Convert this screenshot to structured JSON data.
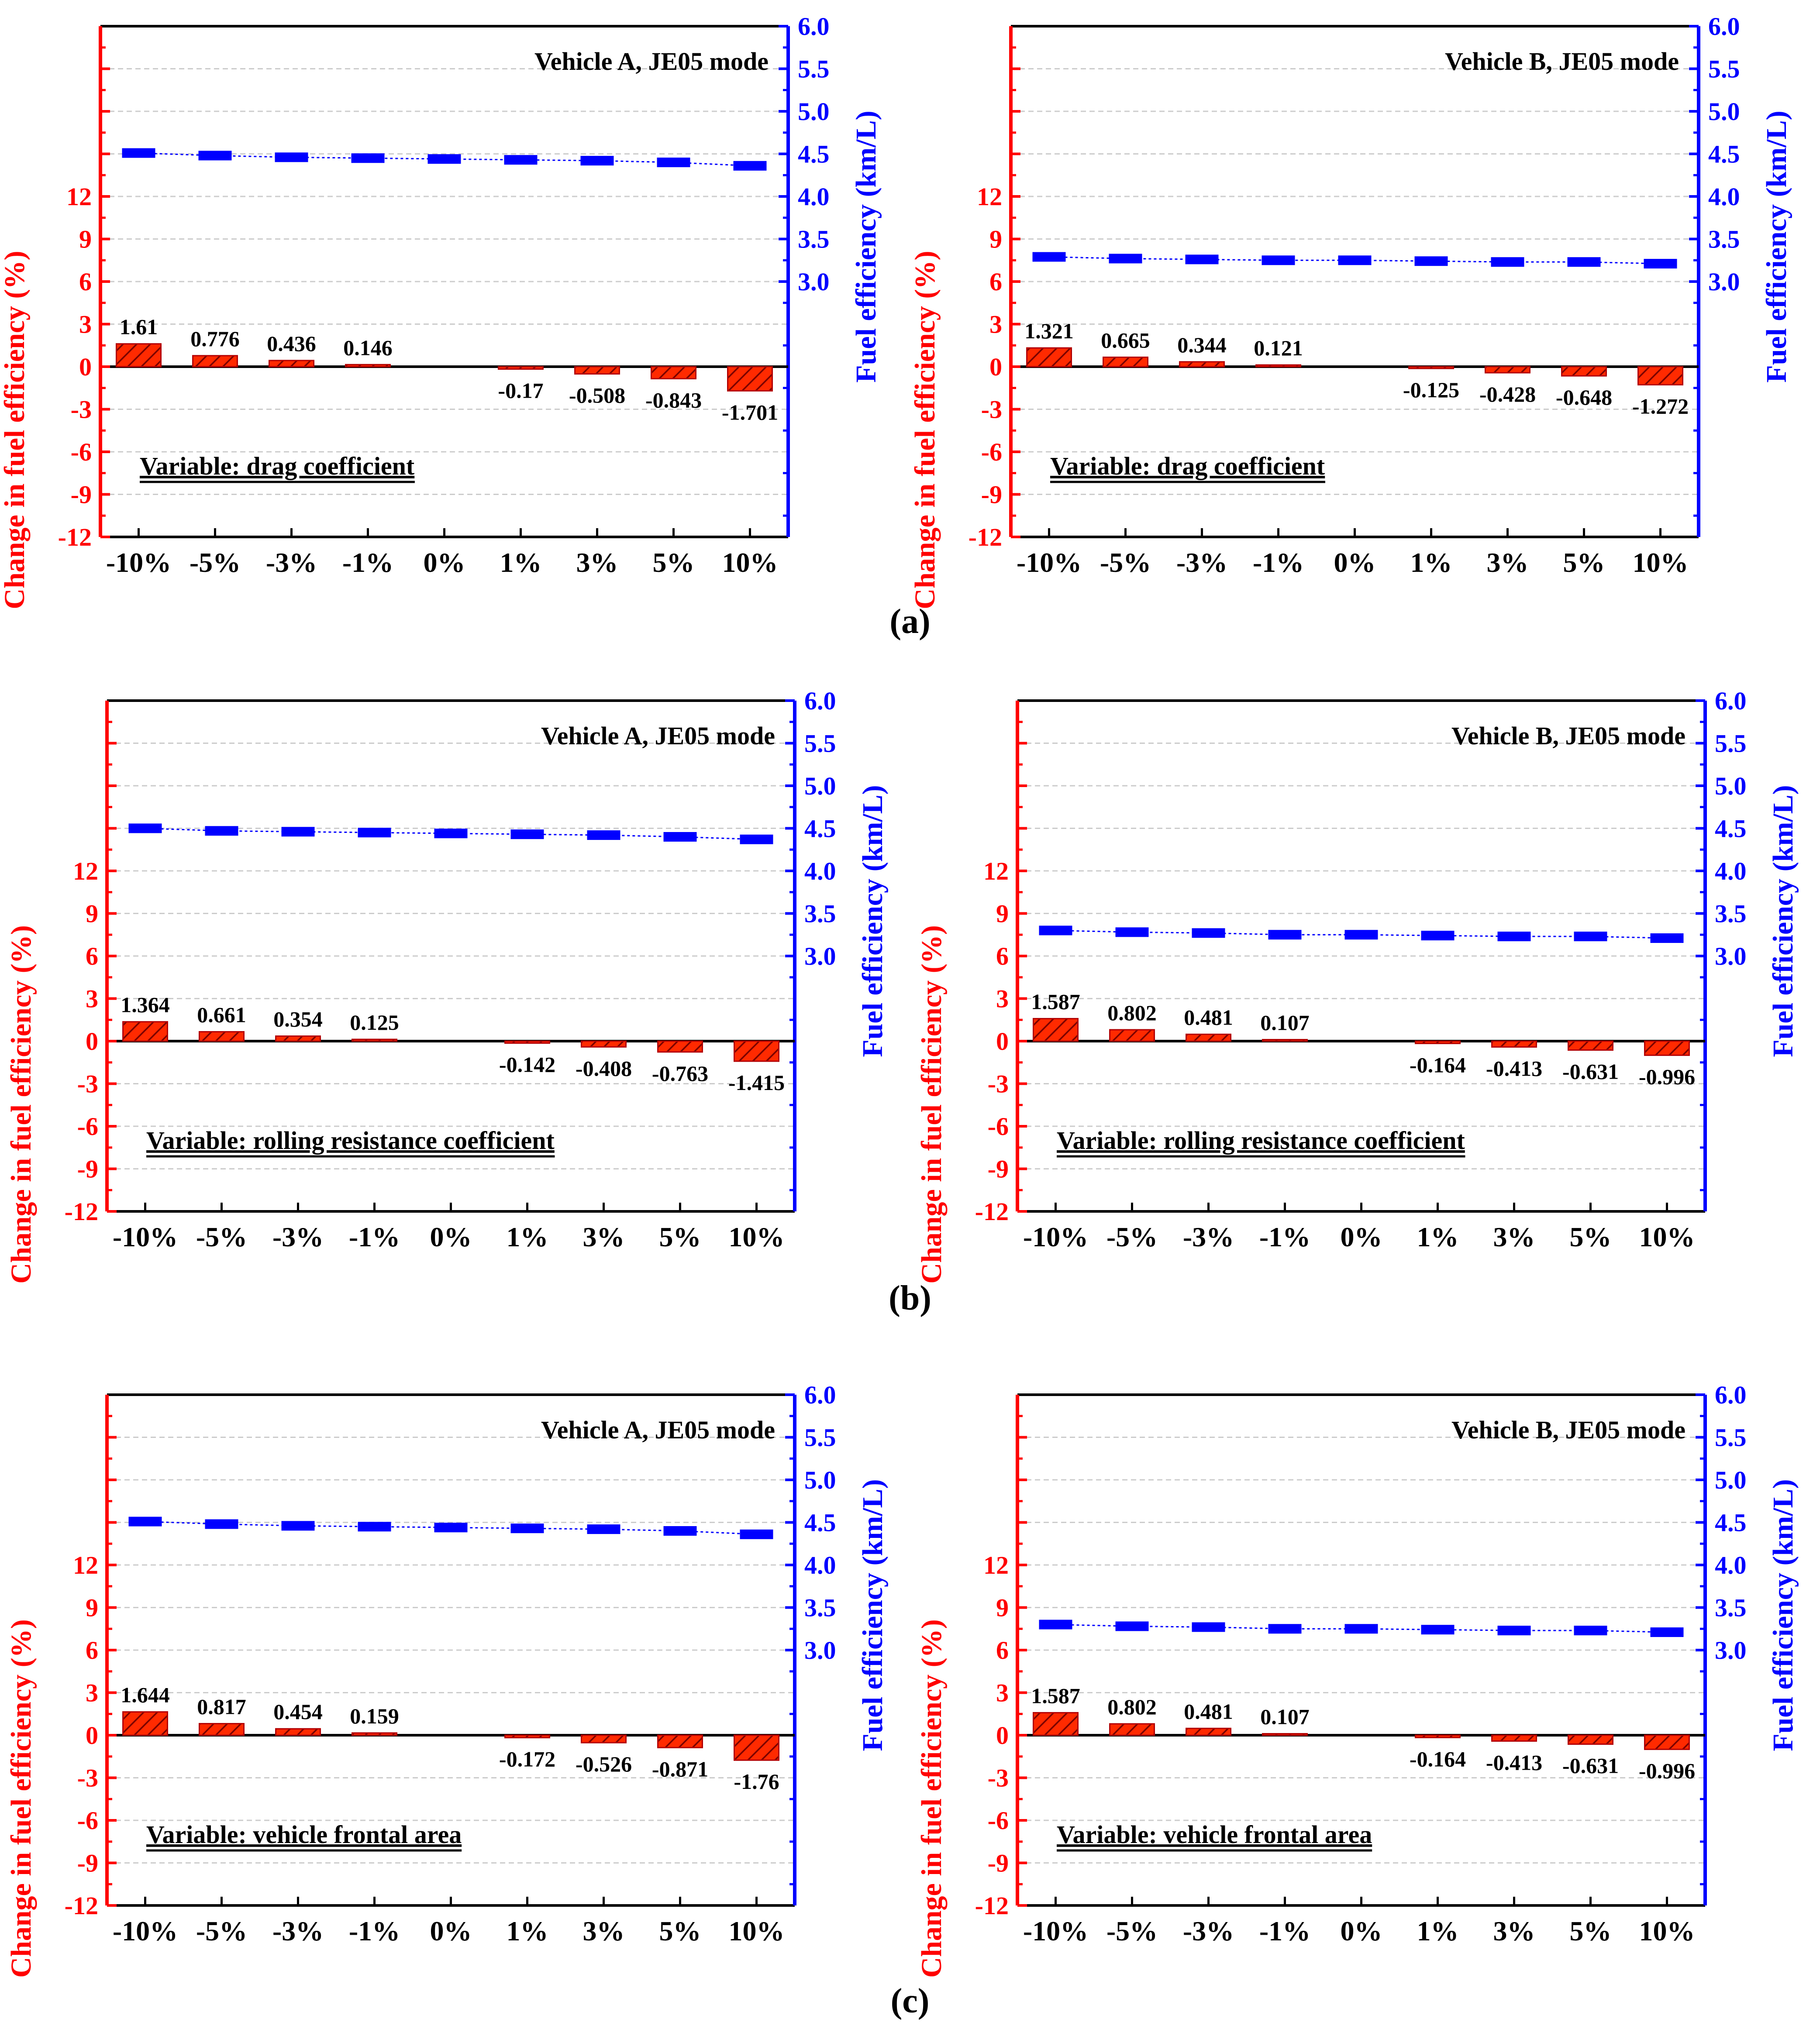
{
  "colors": {
    "left_axis": "#ff0000",
    "right_axis": "#0000ff",
    "bar_fill": "#ff2a00",
    "bar_hatch": "#7a0000",
    "fe_marker": "#0000ff",
    "grid": "#cccccc",
    "zero_line": "#000000"
  },
  "panel_labels": [
    "(a)",
    "(b)",
    "(c)"
  ],
  "chart_data": [
    {
      "type": "bar",
      "panel": "a",
      "title": "Vehicle A, JE05 mode",
      "annotation": "Variable: drag coefficient",
      "categories": [
        "-10%",
        "-5%",
        "-3%",
        "-1%",
        "0%",
        "1%",
        "3%",
        "5%",
        "10%"
      ],
      "ylabel": "Change in fuel efficiency (%)",
      "ylim": [
        -12,
        24
      ],
      "yticks": [
        "-12",
        "-9",
        "-6",
        "-3",
        "0",
        "3",
        "6",
        "9",
        "12"
      ],
      "y2label": "Fuel efficiency (km/L)",
      "y2lim": [
        0,
        6.0
      ],
      "y2ticks": [
        "3.0",
        "3.5",
        "4.0",
        "4.5",
        "5.0",
        "5.5",
        "6.0"
      ],
      "values": [
        1.61,
        0.776,
        0.436,
        0.146,
        0,
        -0.17,
        -0.508,
        -0.843,
        -1.701
      ],
      "labels": [
        "1.61",
        "0.776",
        "0.436",
        "0.146",
        "",
        "-0.17",
        "-0.508",
        "-0.843",
        "-1.701"
      ],
      "fuel_efficiency": [
        4.51,
        4.48,
        4.46,
        4.45,
        4.44,
        4.43,
        4.42,
        4.4,
        4.36
      ]
    },
    {
      "type": "bar",
      "panel": "a",
      "title": "Vehicle B, JE05 mode",
      "annotation": "Variable: drag coefficient",
      "categories": [
        "-10%",
        "-5%",
        "-3%",
        "-1%",
        "0%",
        "1%",
        "3%",
        "5%",
        "10%"
      ],
      "ylabel": "Change in fuel efficiency (%)",
      "ylim": [
        -12,
        24
      ],
      "yticks": [
        "-12",
        "-9",
        "-6",
        "-3",
        "0",
        "3",
        "6",
        "9",
        "12"
      ],
      "y2label": "Fuel efficiency (km/L)",
      "y2lim": [
        0,
        6.0
      ],
      "y2ticks": [
        "3.0",
        "3.5",
        "4.0",
        "4.5",
        "5.0",
        "5.5",
        "6.0"
      ],
      "values": [
        1.321,
        0.665,
        0.344,
        0.121,
        0,
        -0.125,
        -0.428,
        -0.648,
        -1.272
      ],
      "labels": [
        "1.321",
        "0.665",
        "0.344",
        "0.121",
        "",
        "-0.125",
        "-0.428",
        "-0.648",
        "-1.272"
      ],
      "fuel_efficiency": [
        3.29,
        3.27,
        3.26,
        3.25,
        3.25,
        3.24,
        3.23,
        3.23,
        3.21
      ]
    },
    {
      "type": "bar",
      "panel": "b",
      "title": "Vehicle A, JE05 mode",
      "annotation": "Variable: rolling resistance coefficient",
      "categories": [
        "-10%",
        "-5%",
        "-3%",
        "-1%",
        "0%",
        "1%",
        "3%",
        "5%",
        "10%"
      ],
      "ylabel": "Change in fuel efficiency (%)",
      "ylim": [
        -12,
        24
      ],
      "yticks": [
        "-12",
        "-9",
        "-6",
        "-3",
        "0",
        "3",
        "6",
        "9",
        "12"
      ],
      "y2label": "Fuel efficiency (km/L)",
      "y2lim": [
        0,
        6.0
      ],
      "y2ticks": [
        "3.0",
        "3.5",
        "4.0",
        "4.5",
        "5.0",
        "5.5",
        "6.0"
      ],
      "values": [
        1.364,
        0.661,
        0.354,
        0.125,
        0,
        -0.142,
        -0.408,
        -0.763,
        -1.415
      ],
      "labels": [
        "1.364",
        "0.661",
        "0.354",
        "0.125",
        "",
        "-0.142",
        "-0.408",
        "-0.763",
        "-1.415"
      ],
      "fuel_efficiency": [
        4.5,
        4.47,
        4.46,
        4.45,
        4.44,
        4.43,
        4.42,
        4.4,
        4.37
      ]
    },
    {
      "type": "bar",
      "panel": "b",
      "title": "Vehicle B, JE05 mode",
      "annotation": "Variable: rolling resistance coefficient",
      "categories": [
        "-10%",
        "-5%",
        "-3%",
        "-1%",
        "0%",
        "1%",
        "3%",
        "5%",
        "10%"
      ],
      "ylabel": "Change in fuel efficiency (%)",
      "ylim": [
        -12,
        24
      ],
      "yticks": [
        "-12",
        "-9",
        "-6",
        "-3",
        "0",
        "3",
        "6",
        "9",
        "12"
      ],
      "y2label": "Fuel efficiency (km/L)",
      "y2lim": [
        0,
        6.0
      ],
      "y2ticks": [
        "3.0",
        "3.5",
        "4.0",
        "4.5",
        "5.0",
        "5.5",
        "6.0"
      ],
      "values": [
        1.587,
        0.802,
        0.481,
        0.107,
        0,
        -0.164,
        -0.413,
        -0.631,
        -0.996
      ],
      "labels": [
        "1.587",
        "0.802",
        "0.481",
        "0.107",
        "",
        "-0.164",
        "-0.413",
        "-0.631",
        "-0.996"
      ],
      "fuel_efficiency": [
        3.3,
        3.28,
        3.27,
        3.25,
        3.25,
        3.24,
        3.23,
        3.23,
        3.21
      ]
    },
    {
      "type": "bar",
      "panel": "c",
      "title": "Vehicle A, JE05 mode",
      "annotation": "Variable: vehicle frontal area",
      "categories": [
        "-10%",
        "-5%",
        "-3%",
        "-1%",
        "0%",
        "1%",
        "3%",
        "5%",
        "10%"
      ],
      "ylabel": "Change in fuel efficiency (%)",
      "ylim": [
        -12,
        24
      ],
      "yticks": [
        "-12",
        "-9",
        "-6",
        "-3",
        "0",
        "3",
        "6",
        "9",
        "12"
      ],
      "y2label": "Fuel efficiency (km/L)",
      "y2lim": [
        0,
        6.0
      ],
      "y2ticks": [
        "3.0",
        "3.5",
        "4.0",
        "4.5",
        "5.0",
        "5.5",
        "6.0"
      ],
      "values": [
        1.644,
        0.817,
        0.454,
        0.159,
        0,
        -0.172,
        -0.526,
        -0.871,
        -1.76
      ],
      "labels": [
        "1.644",
        "0.817",
        "0.454",
        "0.159",
        "",
        "-0.172",
        "-0.526",
        "-0.871",
        "-1.76"
      ],
      "fuel_efficiency": [
        4.51,
        4.48,
        4.46,
        4.45,
        4.44,
        4.43,
        4.42,
        4.4,
        4.36
      ]
    },
    {
      "type": "bar",
      "panel": "c",
      "title": "Vehicle B, JE05 mode",
      "annotation": "Variable: vehicle frontal area",
      "categories": [
        "-10%",
        "-5%",
        "-3%",
        "-1%",
        "0%",
        "1%",
        "3%",
        "5%",
        "10%"
      ],
      "ylabel": "Change in fuel efficiency (%)",
      "ylim": [
        -12,
        24
      ],
      "yticks": [
        "-12",
        "-9",
        "-6",
        "-3",
        "0",
        "3",
        "6",
        "9",
        "12"
      ],
      "y2label": "Fuel efficiency (km/L)",
      "y2lim": [
        0,
        6.0
      ],
      "y2ticks": [
        "3.0",
        "3.5",
        "4.0",
        "4.5",
        "5.0",
        "5.5",
        "6.0"
      ],
      "values": [
        1.587,
        0.802,
        0.481,
        0.107,
        0,
        -0.164,
        -0.413,
        -0.631,
        -0.996
      ],
      "labels": [
        "1.587",
        "0.802",
        "0.481",
        "0.107",
        "",
        "-0.164",
        "-0.413",
        "-0.631",
        "-0.996"
      ],
      "fuel_efficiency": [
        3.3,
        3.28,
        3.27,
        3.25,
        3.25,
        3.24,
        3.23,
        3.23,
        3.21
      ]
    }
  ]
}
